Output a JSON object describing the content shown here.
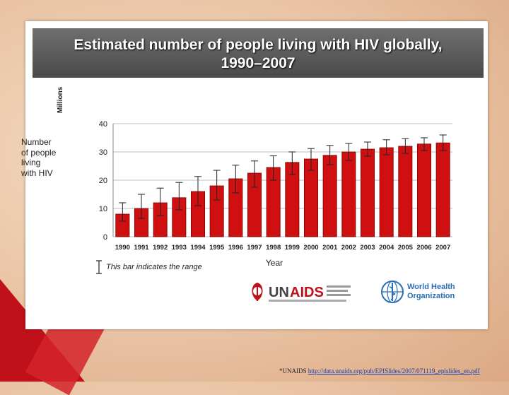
{
  "chart_data": {
    "type": "bar",
    "title": "Estimated number of people living with HIV globally,",
    "subtitle": "1990–2007",
    "xlabel": "Year",
    "ylabel": "Number of people living with HIV",
    "ylabel_lines": [
      "Number",
      "of people",
      "living",
      "with HIV"
    ],
    "units": "Millions",
    "ylim": [
      0,
      40
    ],
    "yticks": [
      0,
      10,
      20,
      30,
      40
    ],
    "grid": true,
    "bar_color": "#d01010",
    "categories": [
      "1990",
      "1991",
      "1992",
      "1993",
      "1994",
      "1995",
      "1996",
      "1997",
      "1998",
      "1999",
      "2000",
      "2001",
      "2002",
      "2003",
      "2004",
      "2005",
      "2006",
      "2007"
    ],
    "values": [
      8,
      10,
      12,
      13.8,
      16,
      18,
      20.5,
      22.5,
      24.5,
      26.3,
      27.5,
      28.8,
      30,
      31,
      31.5,
      32,
      32.8,
      33.2
    ],
    "range_low": [
      5.5,
      6.5,
      7.5,
      9.5,
      11,
      13,
      15.5,
      17.5,
      20,
      22,
      23.5,
      25.5,
      27,
      28.5,
      29,
      29.5,
      30.5,
      30.5
    ],
    "range_high": [
      12,
      15,
      17.2,
      19.2,
      21.3,
      23.5,
      25.3,
      26.8,
      28.6,
      30,
      31.2,
      32.3,
      33,
      33.5,
      34.3,
      34.7,
      35,
      36
    ],
    "legend_note": "This bar indicates the range"
  },
  "logos": {
    "unaids": "UNAIDS",
    "who_line1": "World Health",
    "who_line2": "Organization"
  },
  "footer": {
    "prefix": "*UNAIDS",
    "url": "http://data.unaids.org/pub/EPISlides/2007/071119_epislides_en.pdf"
  },
  "colors": {
    "slide_bg": "#ffffff",
    "title_band": "#5a5a5a",
    "accent_red": "#c0111a"
  }
}
